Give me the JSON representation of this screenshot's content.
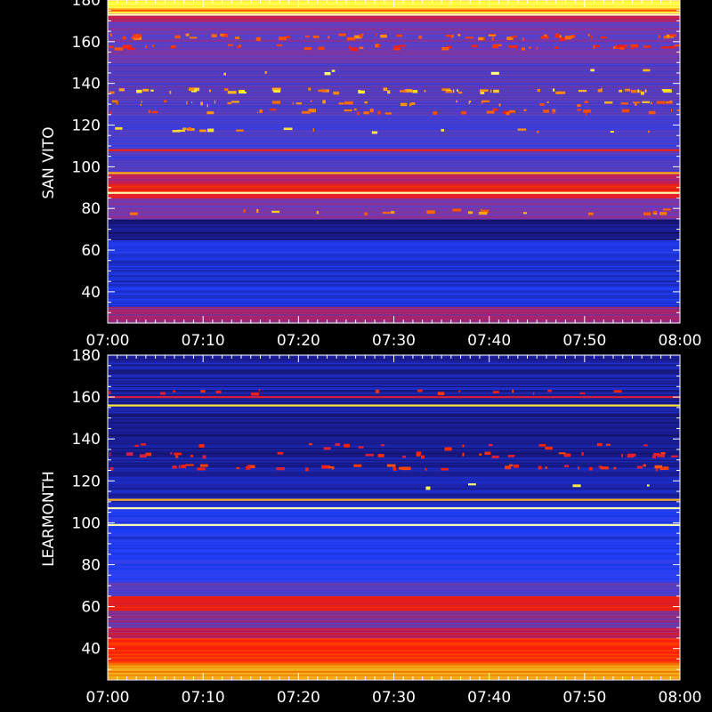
{
  "chart_data": [
    {
      "type": "heatmap",
      "station": "SAN VITO",
      "ylabel": "SAN VITO",
      "x_ticks": [
        "07:00",
        "07:10",
        "07:20",
        "07:30",
        "07:40",
        "07:50",
        "08:00"
      ],
      "x_range": [
        "07:00",
        "08:00"
      ],
      "y_ticks": [
        40,
        60,
        80,
        100,
        120,
        140,
        160,
        180
      ],
      "ylim": [
        25,
        180
      ],
      "colormap": [
        "#000000",
        "#1a1a8c",
        "#2040ff",
        "#6040c0",
        "#c02060",
        "#ff2000",
        "#ff8000",
        "#ffff40",
        "#ffffff"
      ],
      "bands": [
        {
          "from": 25,
          "to": 33,
          "level": 0.45
        },
        {
          "from": 33,
          "to": 45,
          "level": 0.22
        },
        {
          "from": 45,
          "to": 55,
          "level": 0.2
        },
        {
          "from": 55,
          "to": 65,
          "level": 0.24
        },
        {
          "from": 65,
          "to": 75,
          "level": 0.12
        },
        {
          "from": 75,
          "to": 85,
          "level": 0.4
        },
        {
          "from": 85,
          "to": 88,
          "level": 0.55
        },
        {
          "from": 88,
          "to": 92,
          "level": 0.62
        },
        {
          "from": 92,
          "to": 98,
          "level": 0.5
        },
        {
          "from": 98,
          "to": 108,
          "level": 0.34
        },
        {
          "from": 108,
          "to": 125,
          "level": 0.33
        },
        {
          "from": 125,
          "to": 150,
          "level": 0.36
        },
        {
          "from": 150,
          "to": 170,
          "level": 0.38
        },
        {
          "from": 170,
          "to": 174,
          "level": 0.5
        },
        {
          "from": 174,
          "to": 180,
          "level": 0.85
        }
      ],
      "lines": [
        {
          "freq": 87.5,
          "level": 0.95
        },
        {
          "freq": 97,
          "level": 0.8
        },
        {
          "freq": 108,
          "level": 0.6
        },
        {
          "freq": 173,
          "level": 0.95
        },
        {
          "freq": 175,
          "level": 0.7
        }
      ],
      "bursts": [
        {
          "freq": 163,
          "density": 0.45,
          "level": 0.7
        },
        {
          "freq": 158,
          "density": 0.35,
          "level": 0.65
        },
        {
          "freq": 146,
          "density": 0.05,
          "level": 0.85
        },
        {
          "freq": 137,
          "density": 0.4,
          "level": 0.8
        },
        {
          "freq": 131,
          "density": 0.3,
          "level": 0.75
        },
        {
          "freq": 127,
          "density": 0.25,
          "level": 0.7
        },
        {
          "freq": 118,
          "density": 0.12,
          "level": 0.8
        },
        {
          "freq": 79,
          "density": 0.15,
          "level": 0.75
        }
      ]
    },
    {
      "type": "heatmap",
      "station": "LEARMONTH",
      "ylabel": "LEARMONTH",
      "x_ticks": [
        "07:00",
        "07:10",
        "07:20",
        "07:30",
        "07:40",
        "07:50",
        "08:00"
      ],
      "x_range": [
        "07:00",
        "08:00"
      ],
      "y_ticks": [
        40,
        60,
        80,
        100,
        120,
        140,
        160,
        180
      ],
      "ylim": [
        25,
        180
      ],
      "colormap": [
        "#000000",
        "#1a1a8c",
        "#2040ff",
        "#6040c0",
        "#c02060",
        "#ff2000",
        "#ff8000",
        "#ffff40",
        "#ffffff"
      ],
      "bands": [
        {
          "from": 25,
          "to": 33,
          "level": 0.78
        },
        {
          "from": 33,
          "to": 45,
          "level": 0.64
        },
        {
          "from": 45,
          "to": 50,
          "level": 0.52
        },
        {
          "from": 50,
          "to": 58,
          "level": 0.42
        },
        {
          "from": 58,
          "to": 65,
          "level": 0.6
        },
        {
          "from": 65,
          "to": 72,
          "level": 0.36
        },
        {
          "from": 72,
          "to": 90,
          "level": 0.25
        },
        {
          "from": 90,
          "to": 108,
          "level": 0.24
        },
        {
          "from": 108,
          "to": 125,
          "level": 0.16
        },
        {
          "from": 125,
          "to": 160,
          "level": 0.14
        },
        {
          "from": 160,
          "to": 180,
          "level": 0.15
        }
      ],
      "lines": [
        {
          "freq": 99,
          "level": 0.95
        },
        {
          "freq": 107,
          "level": 0.95
        },
        {
          "freq": 111,
          "level": 0.8
        },
        {
          "freq": 156,
          "level": 0.85
        },
        {
          "freq": 160,
          "level": 0.55
        }
      ],
      "bursts": [
        {
          "freq": 163,
          "density": 0.12,
          "level": 0.6
        },
        {
          "freq": 137,
          "density": 0.12,
          "level": 0.6
        },
        {
          "freq": 133,
          "density": 0.25,
          "level": 0.6
        },
        {
          "freq": 127,
          "density": 0.3,
          "level": 0.62
        },
        {
          "freq": 118,
          "density": 0.03,
          "level": 0.85
        }
      ]
    }
  ]
}
